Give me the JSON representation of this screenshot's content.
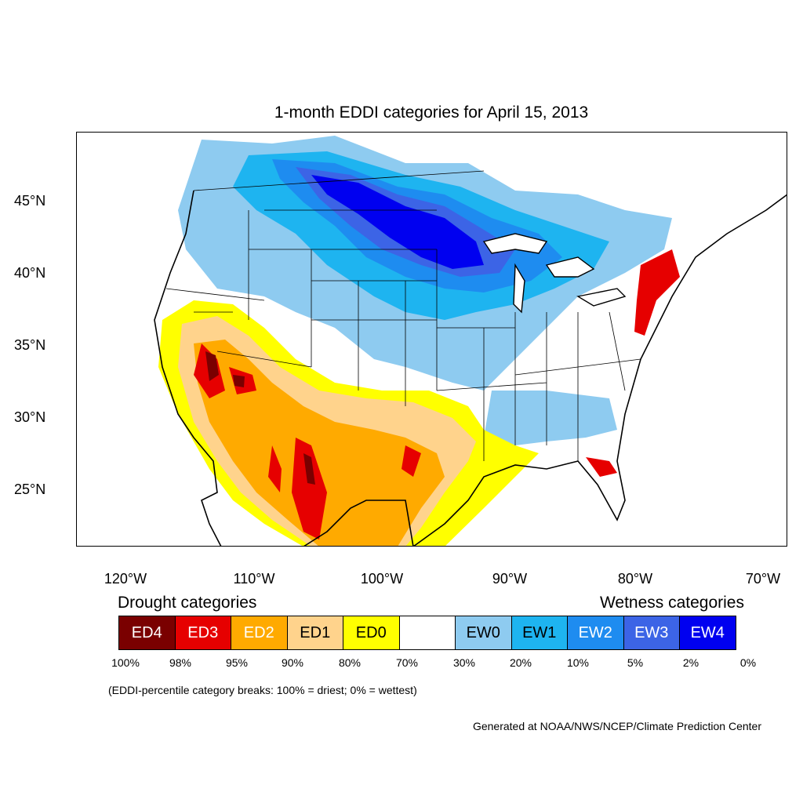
{
  "title": "1-month EDDI categories for April 15, 2013",
  "lat_labels": [
    "45°N",
    "40°N",
    "35°N",
    "30°N",
    "25°N"
  ],
  "lon_labels": [
    "120°W",
    "110°W",
    "100°W",
    "90°W",
    "80°W",
    "70°W"
  ],
  "legend": {
    "drought_heading": "Drought categories",
    "wetness_heading": "Wetness categories",
    "categories": [
      {
        "label": "ED4",
        "color": "#7a0000"
      },
      {
        "label": "ED3",
        "color": "#e60000"
      },
      {
        "label": "ED2",
        "color": "#ffaa00"
      },
      {
        "label": "ED1",
        "color": "#ffd38c"
      },
      {
        "label": "ED0",
        "color": "#ffff00"
      },
      {
        "label": "",
        "color": "#ffffff"
      },
      {
        "label": "EW0",
        "color": "#8ecbf0"
      },
      {
        "label": "EW1",
        "color": "#1eb4f0"
      },
      {
        "label": "EW2",
        "color": "#1e8cf0"
      },
      {
        "label": "EW3",
        "color": "#3c64e6"
      },
      {
        "label": "EW4",
        "color": "#0000f0"
      }
    ],
    "breaks": [
      "100%",
      "98%",
      "95%",
      "90%",
      "80%",
      "70%",
      "30%",
      "20%",
      "10%",
      "5%",
      "2%",
      "0%"
    ]
  },
  "note": "(EDDI-percentile category breaks: 100% = driest; 0% = wettest)",
  "credit": "Generated at NOAA/NWS/NCEP/Climate Prediction Center"
}
